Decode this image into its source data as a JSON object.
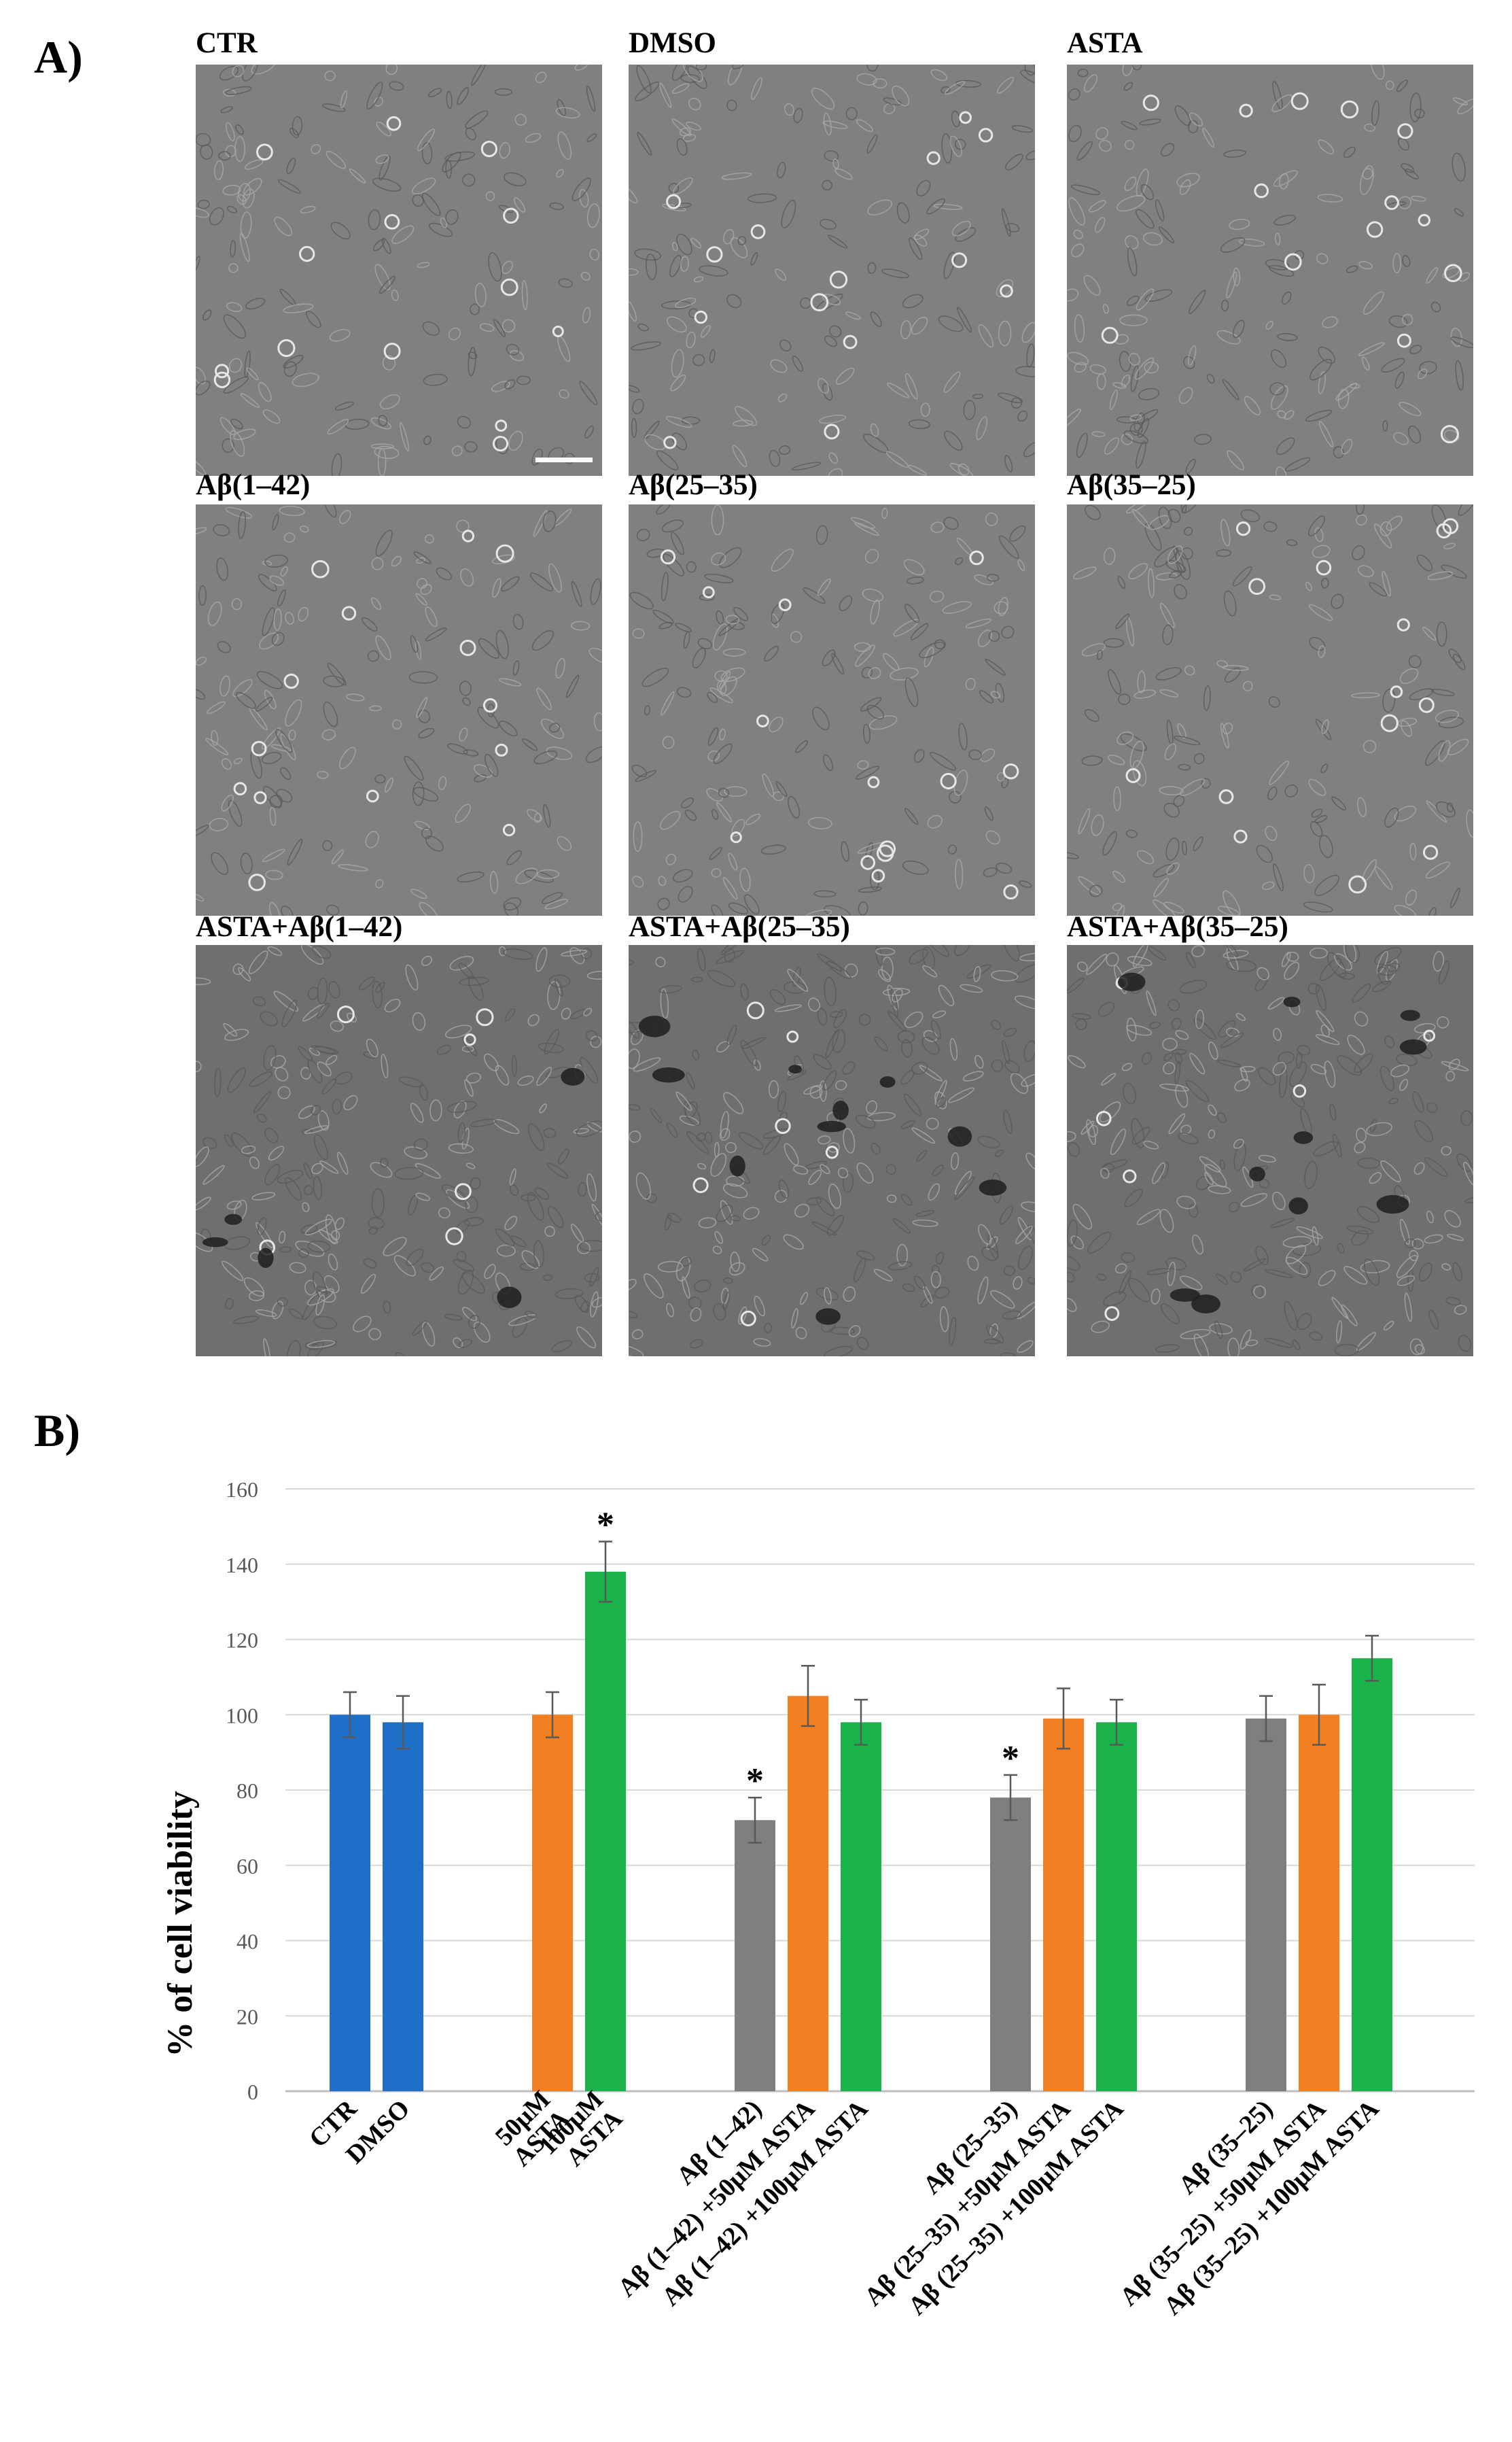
{
  "panel_a": {
    "letter": "A)",
    "images": [
      {
        "label": "CTR",
        "style": "plain"
      },
      {
        "label": "DMSO",
        "style": "plain"
      },
      {
        "label": "ASTA",
        "style": "plain"
      },
      {
        "label": "Aβ(1–42)",
        "style": "plain"
      },
      {
        "label": "Aβ(25–35)",
        "style": "plain"
      },
      {
        "label": "Aβ(35–25)",
        "style": "plain"
      },
      {
        "label": "ASTA+Aβ(1–42)",
        "style": "dense"
      },
      {
        "label": "ASTA+Aβ(25–35)",
        "style": "dense"
      },
      {
        "label": "ASTA+Aβ(35–25)",
        "style": "dense"
      }
    ]
  },
  "panel_b": {
    "letter": "B)"
  },
  "chart_data": {
    "type": "bar",
    "ylabel": "% of cell viability",
    "ylim": [
      0,
      160
    ],
    "yticks": [
      0,
      20,
      40,
      60,
      80,
      100,
      120,
      140,
      160
    ],
    "grid": true,
    "colors": {
      "blue": "#1F6FC9",
      "orange": "#F27F22",
      "green": "#19B24B",
      "gray": "#7F7F7F",
      "grid": "#D9D9D9",
      "axis": "#BFBFBF"
    },
    "groups": [
      {
        "bars": [
          {
            "label": "CTR",
            "value": 100,
            "error": 6,
            "color": "blue",
            "significant": false
          },
          {
            "label": "DMSO",
            "value": 98,
            "error": 7,
            "color": "blue",
            "significant": false
          }
        ]
      },
      {
        "bars": [
          {
            "label": "50μM ASTA",
            "value": 100,
            "error": 6,
            "color": "orange",
            "significant": false
          },
          {
            "label": "100μM ASTA",
            "value": 138,
            "error": 8,
            "color": "green",
            "significant": true
          }
        ]
      },
      {
        "bars": [
          {
            "label": "Aβ (1–42)",
            "value": 72,
            "error": 6,
            "color": "gray",
            "significant": true
          },
          {
            "label": "Aβ (1–42) +50μM ASTA",
            "value": 105,
            "error": 8,
            "color": "orange",
            "significant": false
          },
          {
            "label": "Aβ (1–42) +100μM ASTA",
            "value": 98,
            "error": 6,
            "color": "green",
            "significant": false
          }
        ]
      },
      {
        "bars": [
          {
            "label": "Aβ (25–35)",
            "value": 78,
            "error": 6,
            "color": "gray",
            "significant": true
          },
          {
            "label": "Aβ (25–35) +50μM ASTA",
            "value": 99,
            "error": 8,
            "color": "orange",
            "significant": false
          },
          {
            "label": "Aβ (25–35) +100μM ASTA",
            "value": 98,
            "error": 6,
            "color": "green",
            "significant": false
          }
        ]
      },
      {
        "bars": [
          {
            "label": "Aβ (35–25)",
            "value": 99,
            "error": 6,
            "color": "gray",
            "significant": false
          },
          {
            "label": "Aβ (35–25) +50μM ASTA",
            "value": 100,
            "error": 8,
            "color": "orange",
            "significant": false
          },
          {
            "label": "Aβ (35–25) +100μM ASTA",
            "value": 115,
            "error": 6,
            "color": "green",
            "significant": false
          }
        ]
      }
    ],
    "significance_marker": "*"
  }
}
